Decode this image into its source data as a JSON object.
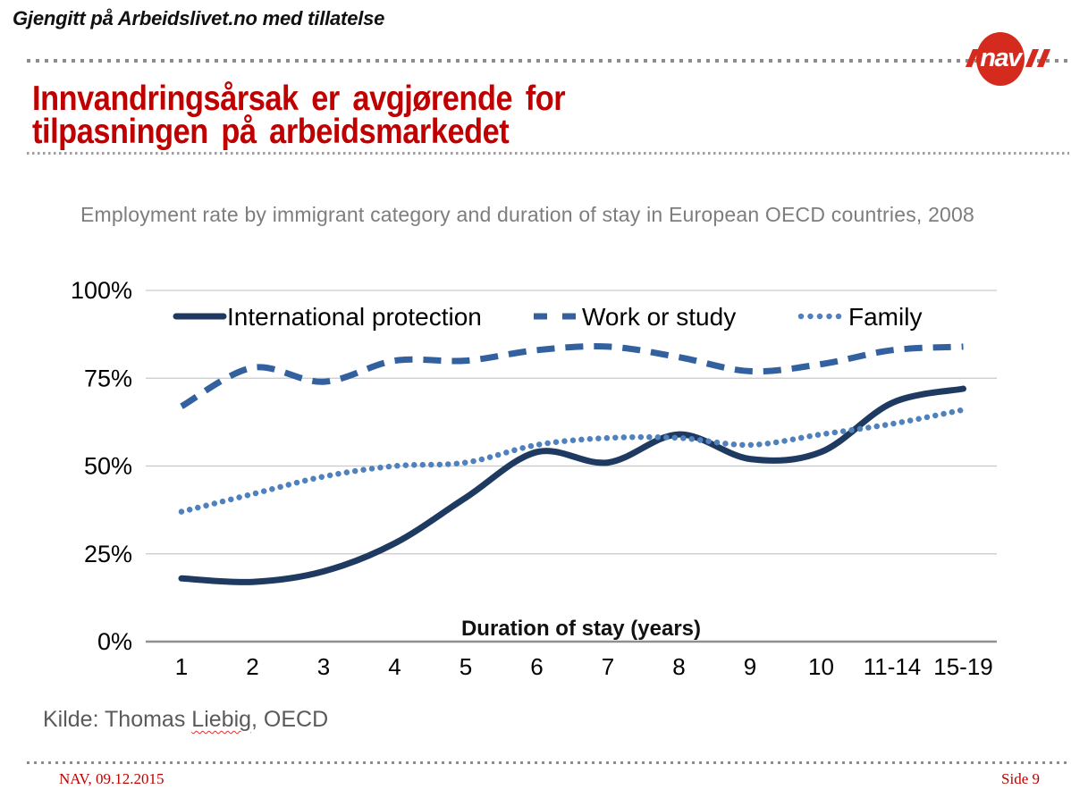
{
  "header": {
    "credit": "Gjengitt på Arbeidslivet.no med tillatelse",
    "logo_text": "nav"
  },
  "title": {
    "line1": "Innvandringsårsak er avgjørende for",
    "line2": "tilpasningen på arbeidsmarkedet"
  },
  "colors": {
    "title_red": "#c00000",
    "logo_red": "#d52b1e",
    "footer_red": "#bf0000",
    "gridline_gray": "#c9c9c9",
    "axis_gray": "#8f8f8f"
  },
  "chart_data": {
    "type": "line",
    "title": "Employment rate by immigrant category and duration of stay in European OECD countries, 2008",
    "xlabel": "Duration of stay (years)",
    "ylabel": "",
    "categories": [
      "1",
      "2",
      "3",
      "4",
      "5",
      "6",
      "7",
      "8",
      "9",
      "10",
      "11-14",
      "15-19"
    ],
    "yticks": [
      "0%",
      "25%",
      "50%",
      "75%",
      "100%"
    ],
    "ylim": [
      0,
      100
    ],
    "grid": true,
    "legend_position": "top-inside",
    "series": [
      {
        "name": "International protection",
        "style": "solid",
        "color": "#1f3a60",
        "values": [
          18,
          17,
          20,
          28,
          41,
          54,
          51,
          59,
          52,
          54,
          68,
          72
        ]
      },
      {
        "name": "Work or study",
        "style": "dashed",
        "color": "#33609f",
        "values": [
          67,
          78,
          74,
          80,
          80,
          83,
          84,
          81,
          77,
          79,
          83,
          84
        ]
      },
      {
        "name": "Family",
        "style": "dotted",
        "color": "#4e81bd",
        "values": [
          37,
          42,
          47,
          50,
          51,
          56,
          58,
          58,
          56,
          59,
          62,
          66
        ]
      }
    ]
  },
  "source": {
    "prefix": "Kilde: Thomas ",
    "underlined_word": "Liebig",
    "suffix": ", OECD"
  },
  "footer": {
    "left": "NAV, 09.12.2015",
    "right": "Side 9"
  }
}
